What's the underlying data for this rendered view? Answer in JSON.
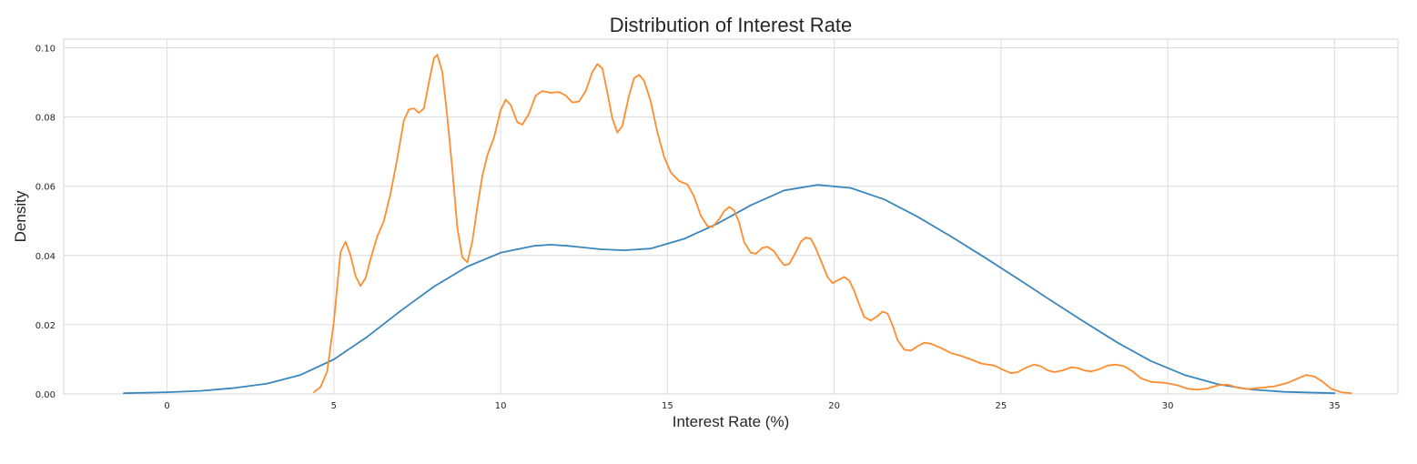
{
  "chart_data": {
    "type": "line",
    "title": "Distribution of Interest Rate",
    "xlabel": "Interest Rate (%)",
    "ylabel": "Density",
    "xlim": [
      -3.1,
      36.9
    ],
    "ylim": [
      0,
      0.1025
    ],
    "grid": true,
    "x_ticks": [
      0,
      5,
      10,
      15,
      20,
      25,
      30,
      35
    ],
    "x_tick_labels": [
      "0",
      "5",
      "10",
      "15",
      "20",
      "25",
      "30",
      "35"
    ],
    "y_ticks": [
      0,
      0.02,
      0.04,
      0.06,
      0.08,
      0.1
    ],
    "y_tick_labels": [
      "0.00",
      "0.02",
      "0.04",
      "0.06",
      "0.08",
      "0.10"
    ],
    "series": [
      {
        "color": "#3a87be",
        "points": [
          [
            -1.3,
            0.0002
          ],
          [
            0,
            0.0005
          ],
          [
            1,
            0.0009
          ],
          [
            2,
            0.0017
          ],
          [
            3,
            0.003
          ],
          [
            4,
            0.0055
          ],
          [
            5,
            0.01
          ],
          [
            6,
            0.0165
          ],
          [
            7,
            0.024
          ],
          [
            8,
            0.031
          ],
          [
            9,
            0.0368
          ],
          [
            10,
            0.0408
          ],
          [
            11,
            0.0428
          ],
          [
            11.5,
            0.0431
          ],
          [
            12,
            0.0428
          ],
          [
            13,
            0.0418
          ],
          [
            13.7,
            0.0415
          ],
          [
            14.5,
            0.042
          ],
          [
            15.5,
            0.0448
          ],
          [
            16.5,
            0.0492
          ],
          [
            17.5,
            0.0545
          ],
          [
            18.5,
            0.0588
          ],
          [
            19.5,
            0.0604
          ],
          [
            20.5,
            0.0595
          ],
          [
            21.5,
            0.0562
          ],
          [
            22.5,
            0.0512
          ],
          [
            23.5,
            0.0455
          ],
          [
            24.5,
            0.0395
          ],
          [
            25.5,
            0.0333
          ],
          [
            26.5,
            0.027
          ],
          [
            27.5,
            0.0208
          ],
          [
            28.5,
            0.0148
          ],
          [
            29.5,
            0.0095
          ],
          [
            30.5,
            0.0055
          ],
          [
            31.5,
            0.0028
          ],
          [
            32.5,
            0.0013
          ],
          [
            33.5,
            0.0006
          ],
          [
            35,
            0.0002
          ]
        ]
      },
      {
        "color": "#ff8c2e",
        "points": [
          [
            4.4,
            0.0005
          ],
          [
            4.6,
            0.002
          ],
          [
            4.8,
            0.0065
          ],
          [
            5.0,
            0.021
          ],
          [
            5.2,
            0.041
          ],
          [
            5.35,
            0.044
          ],
          [
            5.5,
            0.04
          ],
          [
            5.65,
            0.034
          ],
          [
            5.8,
            0.0312
          ],
          [
            5.95,
            0.0335
          ],
          [
            6.1,
            0.039
          ],
          [
            6.3,
            0.0455
          ],
          [
            6.5,
            0.05
          ],
          [
            6.7,
            0.058
          ],
          [
            6.9,
            0.068
          ],
          [
            7.1,
            0.079
          ],
          [
            7.25,
            0.0822
          ],
          [
            7.4,
            0.0825
          ],
          [
            7.55,
            0.0812
          ],
          [
            7.7,
            0.0825
          ],
          [
            7.85,
            0.09
          ],
          [
            8.0,
            0.097
          ],
          [
            8.1,
            0.098
          ],
          [
            8.25,
            0.093
          ],
          [
            8.4,
            0.08
          ],
          [
            8.55,
            0.065
          ],
          [
            8.7,
            0.048
          ],
          [
            8.85,
            0.0395
          ],
          [
            9.0,
            0.038
          ],
          [
            9.15,
            0.044
          ],
          [
            9.3,
            0.054
          ],
          [
            9.45,
            0.063
          ],
          [
            9.6,
            0.069
          ],
          [
            9.8,
            0.074
          ],
          [
            10.0,
            0.082
          ],
          [
            10.15,
            0.085
          ],
          [
            10.3,
            0.0835
          ],
          [
            10.5,
            0.0785
          ],
          [
            10.65,
            0.0778
          ],
          [
            10.85,
            0.081
          ],
          [
            11.05,
            0.0862
          ],
          [
            11.25,
            0.0875
          ],
          [
            11.5,
            0.087
          ],
          [
            11.75,
            0.0872
          ],
          [
            11.95,
            0.0862
          ],
          [
            12.15,
            0.0842
          ],
          [
            12.35,
            0.0845
          ],
          [
            12.55,
            0.0875
          ],
          [
            12.75,
            0.093
          ],
          [
            12.9,
            0.0953
          ],
          [
            13.05,
            0.094
          ],
          [
            13.2,
            0.087
          ],
          [
            13.35,
            0.0795
          ],
          [
            13.5,
            0.0755
          ],
          [
            13.65,
            0.0775
          ],
          [
            13.85,
            0.0862
          ],
          [
            14.0,
            0.0912
          ],
          [
            14.15,
            0.0922
          ],
          [
            14.3,
            0.0905
          ],
          [
            14.5,
            0.0845
          ],
          [
            14.7,
            0.0755
          ],
          [
            14.9,
            0.0685
          ],
          [
            15.1,
            0.064
          ],
          [
            15.35,
            0.0615
          ],
          [
            15.6,
            0.0605
          ],
          [
            15.8,
            0.057
          ],
          [
            16.0,
            0.0515
          ],
          [
            16.2,
            0.0485
          ],
          [
            16.35,
            0.0482
          ],
          [
            16.55,
            0.0505
          ],
          [
            16.7,
            0.0528
          ],
          [
            16.85,
            0.054
          ],
          [
            17.0,
            0.053
          ],
          [
            17.15,
            0.0495
          ],
          [
            17.3,
            0.0438
          ],
          [
            17.5,
            0.0408
          ],
          [
            17.65,
            0.0405
          ],
          [
            17.85,
            0.0422
          ],
          [
            18.0,
            0.0425
          ],
          [
            18.2,
            0.0412
          ],
          [
            18.35,
            0.039
          ],
          [
            18.5,
            0.0372
          ],
          [
            18.65,
            0.0375
          ],
          [
            18.85,
            0.041
          ],
          [
            19.0,
            0.044
          ],
          [
            19.15,
            0.0452
          ],
          [
            19.3,
            0.0448
          ],
          [
            19.45,
            0.042
          ],
          [
            19.6,
            0.0385
          ],
          [
            19.8,
            0.0338
          ],
          [
            19.95,
            0.032
          ],
          [
            20.1,
            0.0328
          ],
          [
            20.3,
            0.0338
          ],
          [
            20.45,
            0.0328
          ],
          [
            20.6,
            0.0298
          ],
          [
            20.75,
            0.0258
          ],
          [
            20.9,
            0.0222
          ],
          [
            21.1,
            0.0212
          ],
          [
            21.3,
            0.0225
          ],
          [
            21.45,
            0.0238
          ],
          [
            21.6,
            0.0232
          ],
          [
            21.75,
            0.0198
          ],
          [
            21.9,
            0.0155
          ],
          [
            22.1,
            0.0128
          ],
          [
            22.3,
            0.0125
          ],
          [
            22.5,
            0.0138
          ],
          [
            22.7,
            0.0148
          ],
          [
            22.9,
            0.0145
          ],
          [
            23.2,
            0.0133
          ],
          [
            23.5,
            0.0118
          ],
          [
            23.8,
            0.011
          ],
          [
            24.1,
            0.01
          ],
          [
            24.4,
            0.0088
          ],
          [
            24.8,
            0.0082
          ],
          [
            25.1,
            0.0068
          ],
          [
            25.3,
            0.006
          ],
          [
            25.5,
            0.0063
          ],
          [
            25.8,
            0.0078
          ],
          [
            26.0,
            0.0085
          ],
          [
            26.2,
            0.008
          ],
          [
            26.4,
            0.0068
          ],
          [
            26.6,
            0.0063
          ],
          [
            26.85,
            0.0068
          ],
          [
            27.1,
            0.0077
          ],
          [
            27.3,
            0.0075
          ],
          [
            27.5,
            0.0068
          ],
          [
            27.7,
            0.0065
          ],
          [
            27.9,
            0.007
          ],
          [
            28.2,
            0.0082
          ],
          [
            28.45,
            0.0085
          ],
          [
            28.7,
            0.008
          ],
          [
            28.95,
            0.0065
          ],
          [
            29.2,
            0.0045
          ],
          [
            29.5,
            0.0035
          ],
          [
            29.9,
            0.0032
          ],
          [
            30.3,
            0.0025
          ],
          [
            30.6,
            0.0015
          ],
          [
            30.9,
            0.0012
          ],
          [
            31.2,
            0.0016
          ],
          [
            31.5,
            0.0025
          ],
          [
            31.8,
            0.0027
          ],
          [
            32.1,
            0.0018
          ],
          [
            32.4,
            0.0014
          ],
          [
            32.8,
            0.0018
          ],
          [
            33.2,
            0.0022
          ],
          [
            33.6,
            0.0032
          ],
          [
            33.9,
            0.0045
          ],
          [
            34.15,
            0.0055
          ],
          [
            34.4,
            0.005
          ],
          [
            34.65,
            0.0035
          ],
          [
            34.9,
            0.0015
          ],
          [
            35.2,
            0.0005
          ],
          [
            35.5,
            0.0002
          ]
        ]
      }
    ]
  }
}
